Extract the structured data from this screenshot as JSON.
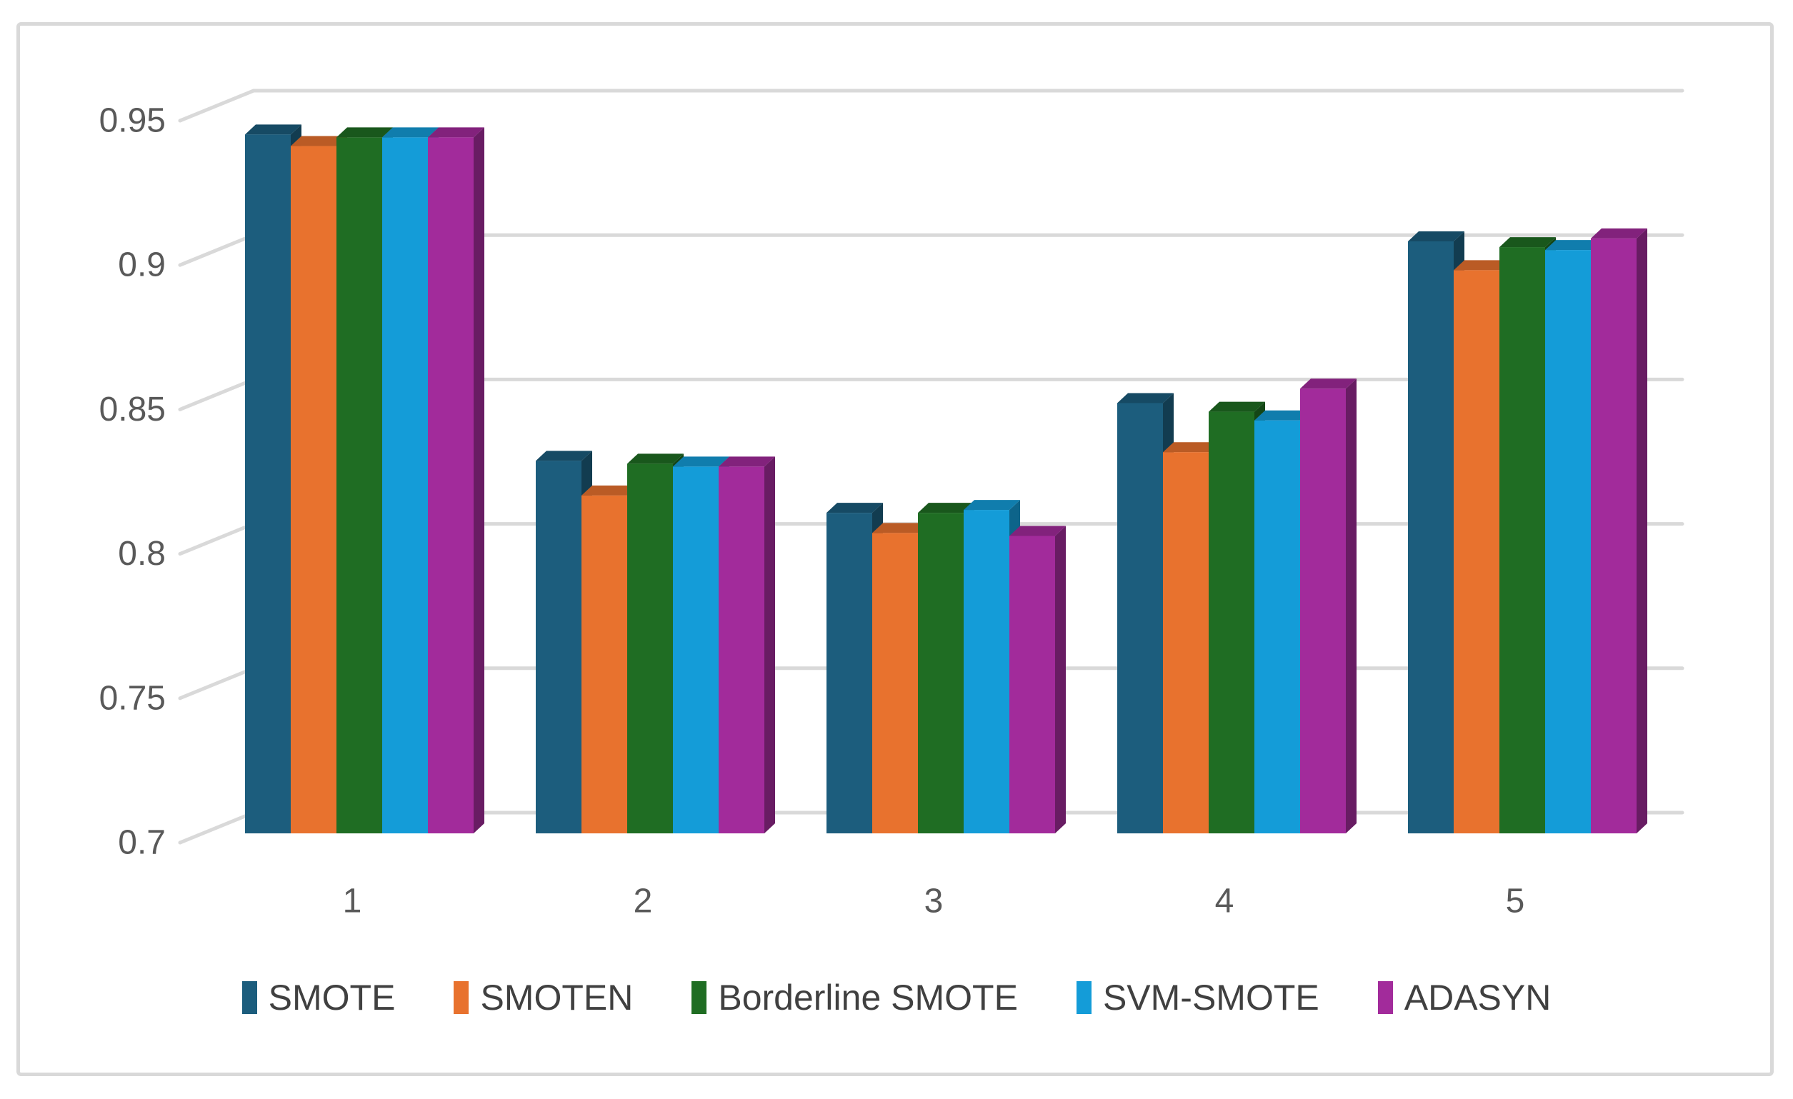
{
  "chart_data": {
    "type": "bar",
    "subtype": "3d-clustered-column",
    "title": "",
    "xlabel": "",
    "ylabel": "",
    "categories": [
      "1",
      "2",
      "3",
      "4",
      "5"
    ],
    "series": [
      {
        "name": "SMOTE",
        "color": "#1C5D7D",
        "values": [
          0.942,
          0.829,
          0.811,
          0.849,
          0.905
        ]
      },
      {
        "name": "SMOTEN",
        "color": "#E8722E",
        "values": [
          0.938,
          0.817,
          0.804,
          0.832,
          0.895
        ]
      },
      {
        "name": "Borderline SMOTE",
        "color": "#1F6D23",
        "values": [
          0.941,
          0.828,
          0.811,
          0.846,
          0.903
        ]
      },
      {
        "name": "SVM-SMOTE",
        "color": "#149CD8",
        "values": [
          0.941,
          0.827,
          0.812,
          0.843,
          0.902
        ]
      },
      {
        "name": "ADASYN",
        "color": "#A22B9B",
        "values": [
          0.941,
          0.827,
          0.803,
          0.854,
          0.906
        ]
      }
    ],
    "ylim": [
      0.7,
      0.95
    ],
    "ytick_labels": [
      "0.95",
      "0.9",
      "0.85",
      "0.8",
      "0.75",
      "0.7"
    ],
    "grid": true,
    "legend_position": "bottom"
  },
  "colors": {
    "background": "#FFFFFF",
    "chart_border": "#D9D9D9",
    "gridline": "#D9D9D9",
    "axis_label": "#595959",
    "legend_text": "#404040"
  }
}
